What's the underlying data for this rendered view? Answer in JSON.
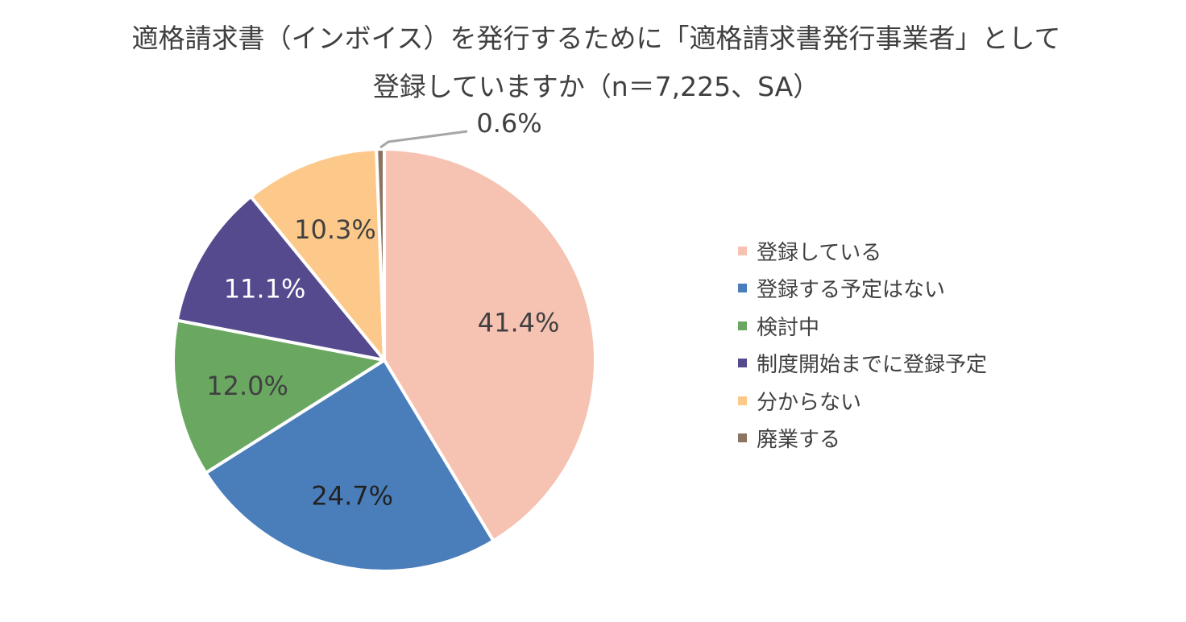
{
  "chart_data": {
    "type": "pie",
    "title_lines": [
      "適格請求書（インボイス）を発行するために「適格請求書発行事業者」として",
      "登録していますか（n＝7,225、SA）"
    ],
    "slices": [
      {
        "label": "登録している",
        "value": 41.4,
        "display": "41.4%",
        "color": "#F6C2B2"
      },
      {
        "label": "登録する予定はない",
        "value": 24.7,
        "display": "24.7%",
        "color": "#4A7EBB"
      },
      {
        "label": "検討中",
        "value": 12.0,
        "display": "12.0%",
        "color": "#6AA862"
      },
      {
        "label": "制度開始までに登録予定",
        "value": 11.1,
        "display": "11.1%",
        "color": "#554A8E"
      },
      {
        "label": "分からない",
        "value": 10.3,
        "display": "10.3%",
        "color": "#FDC98A"
      },
      {
        "label": "廃業する",
        "value": 0.6,
        "display": "0.6%",
        "color": "#8C7462"
      }
    ],
    "legend_position": "right",
    "start_angle": "12 o'clock",
    "direction": "clockwise"
  }
}
